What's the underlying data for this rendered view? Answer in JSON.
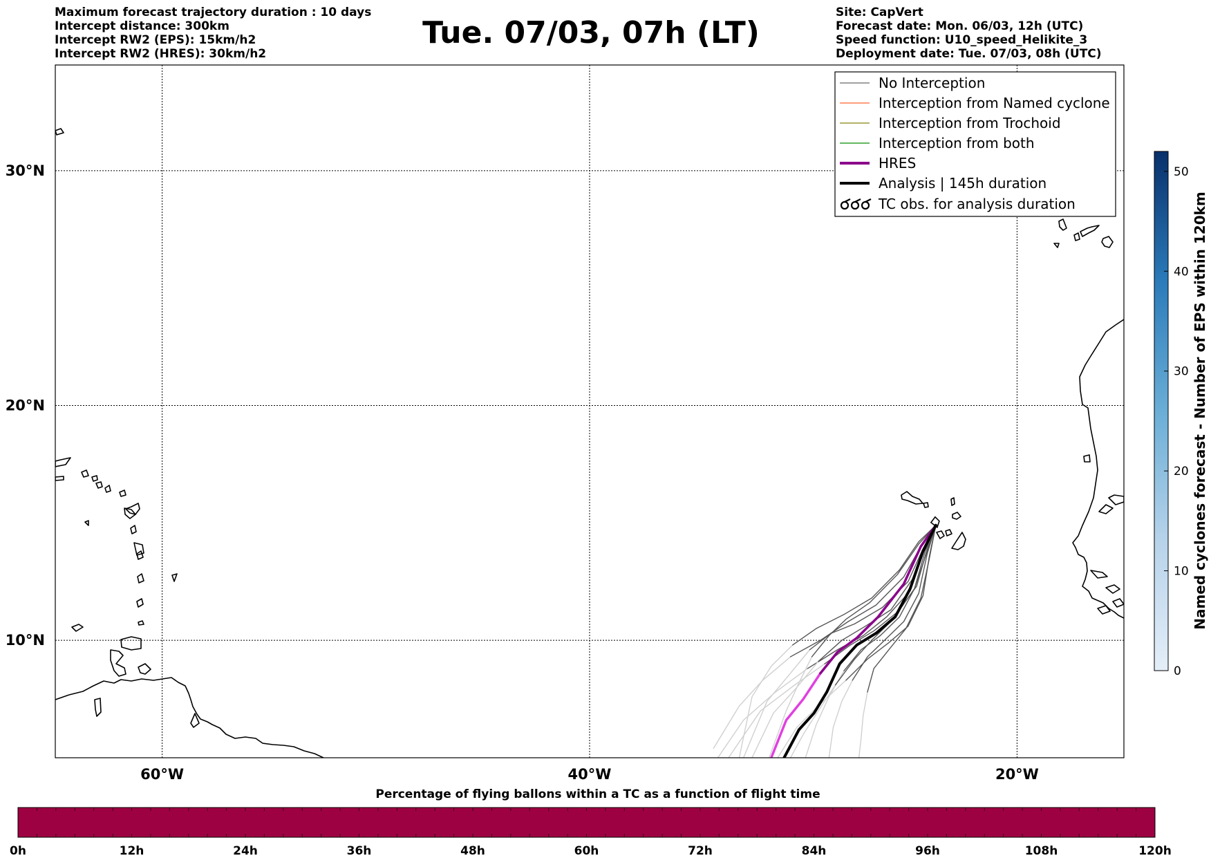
{
  "header": {
    "info_left": [
      "Maximum forecast trajectory duration : 10 days",
      "Intercept distance: 300km",
      "Intercept RW2 (EPS):  15km/h2",
      "Intercept RW2 (HRES): 30km/h2"
    ],
    "title": "Tue. 07/03, 07h (LT)",
    "info_right": [
      "Site: CapVert",
      "Forecast date: Mon. 06/03, 12h (UTC)",
      "Speed function: U10_speed_Helikite_3",
      "Deployment date: Tue. 07/03, 08h (UTC)"
    ]
  },
  "legend": {
    "entries": [
      {
        "label": "No Interception",
        "color": "#808080",
        "style": "thin-line"
      },
      {
        "label": "Interception from Named cyclone",
        "color": "#ff7f50",
        "style": "thin-line"
      },
      {
        "label": "Interception from Trochoid",
        "color": "#999933",
        "style": "thin-line"
      },
      {
        "label": "Interception from both",
        "color": "#2ca02c",
        "style": "thin-line"
      },
      {
        "label": "HRES",
        "color": "#8b008b",
        "style": "thick-line"
      },
      {
        "label": "Analysis | 145h duration",
        "color": "#000000",
        "style": "thick-line"
      },
      {
        "label": "TC obs. for analysis duration",
        "color": "#000000",
        "style": "tc-symbol"
      }
    ]
  },
  "colorbar_eps": {
    "label": "Named cyclones forecast - Number of EPS within 120km",
    "ticks": [
      "0",
      "10",
      "20",
      "30",
      "40",
      "50"
    ],
    "range": [
      0,
      52
    ],
    "color_low": "#e4eef8",
    "color_high": "#08306b"
  },
  "colorbar_pct": {
    "title": "Percentage of flying ballons within a TC as a function of flight time",
    "ticks": [
      "0h",
      "12h",
      "24h",
      "36h",
      "48h",
      "60h",
      "72h",
      "84h",
      "96h",
      "108h",
      "120h"
    ],
    "fill_color": "#9e0142"
  },
  "chart_data": {
    "type": "line",
    "map_extent": {
      "lon": [
        -65,
        -15
      ],
      "lat": [
        5,
        34.5
      ]
    },
    "grid": true,
    "x_ticks": [
      {
        "lon": -60,
        "label": "60°W"
      },
      {
        "lon": -40,
        "label": "40°W"
      },
      {
        "lon": -20,
        "label": "20°W"
      }
    ],
    "y_ticks": [
      {
        "lat": 10,
        "label": "10°N"
      },
      {
        "lat": 20,
        "label": "20°N"
      },
      {
        "lat": 30,
        "label": "30°N"
      }
    ],
    "launch_site": {
      "lon": -23.8,
      "lat": 14.9
    },
    "analysis": {
      "name": "Analysis",
      "color": "#000000",
      "lon": [
        -23.8,
        -24.4,
        -25.0,
        -25.7,
        -26.6,
        -27.5,
        -28.3,
        -28.9,
        -29.5,
        -30.2,
        -30.9
      ],
      "lat": [
        14.9,
        13.8,
        12.2,
        11.0,
        10.3,
        9.8,
        9.0,
        7.8,
        6.9,
        6.2,
        5.0
      ]
    },
    "hres": {
      "name": "HRES",
      "color": "#8b008b",
      "fade_color": "#e040e0",
      "lon": [
        -23.8,
        -24.5,
        -25.3,
        -26.5,
        -27.5,
        -28.4,
        -29.2,
        -30.0,
        -30.8,
        -31.5
      ],
      "lat": [
        14.9,
        14.0,
        12.4,
        11.0,
        10.1,
        9.5,
        8.6,
        7.5,
        6.6,
        5.0
      ]
    },
    "eps_members": {
      "name": "No Interception",
      "color": "#555555",
      "fade_color": "#d0d0d0",
      "tracks": [
        {
          "lon": [
            -23.8,
            -24.2,
            -24.7,
            -25.6,
            -26.7,
            -27.8,
            -29.0,
            -30.4,
            -32.0,
            -33.5
          ],
          "lat": [
            14.9,
            13.9,
            12.3,
            11.2,
            10.4,
            9.8,
            9.0,
            8.1,
            7.0,
            5.0
          ]
        },
        {
          "lon": [
            -23.8,
            -24.4,
            -25.0,
            -26.1,
            -27.2,
            -28.4,
            -29.8,
            -31.3,
            -32.8,
            -34.0
          ],
          "lat": [
            14.9,
            13.7,
            12.1,
            11.0,
            10.2,
            9.6,
            8.8,
            7.8,
            6.6,
            5.0
          ]
        },
        {
          "lon": [
            -23.8,
            -24.1,
            -24.4,
            -25.1,
            -26.0,
            -27.0,
            -28.0,
            -29.2,
            -30.3,
            -31.2
          ],
          "lat": [
            14.9,
            13.6,
            11.9,
            10.6,
            9.9,
            9.2,
            8.3,
            7.3,
            6.3,
            5.0
          ]
        },
        {
          "lon": [
            -23.8,
            -24.3,
            -24.9,
            -25.9,
            -27.1,
            -28.2,
            -29.3,
            -30.3,
            -31.4,
            -32.4
          ],
          "lat": [
            14.9,
            14.0,
            12.6,
            11.3,
            10.6,
            10.0,
            9.1,
            8.0,
            6.9,
            5.0
          ]
        },
        {
          "lon": [
            -23.8,
            -24.6,
            -25.6,
            -26.9,
            -28.0,
            -28.8,
            -29.6,
            -30.2,
            -30.8,
            -31.6
          ],
          "lat": [
            14.9,
            14.1,
            12.8,
            11.6,
            10.9,
            10.2,
            9.3,
            8.2,
            7.0,
            5.0
          ]
        },
        {
          "lon": [
            -23.8,
            -24.2,
            -24.6,
            -25.3,
            -26.2,
            -27.0,
            -27.7,
            -28.2,
            -28.6,
            -28.8
          ],
          "lat": [
            14.9,
            13.7,
            12.0,
            10.8,
            10.0,
            9.3,
            8.3,
            7.4,
            6.3,
            5.0
          ]
        },
        {
          "lon": [
            -23.8,
            -24.3,
            -24.8,
            -25.5,
            -26.4,
            -27.3,
            -28.1,
            -28.8,
            -29.4,
            -29.9
          ],
          "lat": [
            14.9,
            13.8,
            12.2,
            11.0,
            10.2,
            9.6,
            8.7,
            7.6,
            6.4,
            5.0
          ]
        },
        {
          "lon": [
            -23.8,
            -24.5,
            -25.3,
            -26.6,
            -27.9,
            -29.2,
            -30.6,
            -31.9,
            -33.0,
            -34.2
          ],
          "lat": [
            14.9,
            14.0,
            12.7,
            11.5,
            10.8,
            10.0,
            9.3,
            8.3,
            7.2,
            5.4
          ]
        },
        {
          "lon": [
            -23.8,
            -24.1,
            -24.5,
            -25.2,
            -26.0,
            -26.7,
            -27.0,
            -27.2,
            -27.3,
            -27.4
          ],
          "lat": [
            14.9,
            13.5,
            11.8,
            10.5,
            9.6,
            8.8,
            7.8,
            6.8,
            5.8,
            5.0
          ]
        },
        {
          "lon": [
            -23.8,
            -24.4,
            -25.1,
            -26.3,
            -27.6,
            -28.7,
            -29.7,
            -30.6,
            -31.7,
            -32.8
          ],
          "lat": [
            14.9,
            13.9,
            12.5,
            11.4,
            10.7,
            10.3,
            9.6,
            8.6,
            7.4,
            5.0
          ]
        },
        {
          "lon": [
            -23.8,
            -24.2,
            -24.8,
            -25.8,
            -26.8,
            -27.6,
            -28.5,
            -29.3,
            -30.0,
            -30.6
          ],
          "lat": [
            14.9,
            13.8,
            12.2,
            10.9,
            10.0,
            9.2,
            8.1,
            7.0,
            6.0,
            5.0
          ]
        },
        {
          "lon": [
            -23.8,
            -24.6,
            -25.5,
            -26.8,
            -28.1,
            -29.4,
            -30.5,
            -31.5,
            -32.4,
            -33.0
          ],
          "lat": [
            14.9,
            14.2,
            13.0,
            11.8,
            11.1,
            10.5,
            9.8,
            8.9,
            7.6,
            5.0
          ]
        }
      ]
    }
  }
}
